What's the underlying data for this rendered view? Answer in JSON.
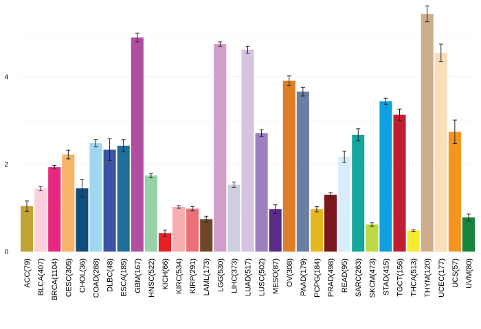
{
  "chart_data": {
    "type": "bar",
    "title": "",
    "xlabel": "",
    "ylabel": "",
    "ylim": [
      0,
      5.6
    ],
    "yticks": [
      0,
      2,
      4
    ],
    "grid": true,
    "legend": "none",
    "categories": [
      "ACC(79)",
      "BLCA(407)",
      "BRCA(1104)",
      "CESC(305)",
      "CHOL(36)",
      "COAD(288)",
      "DLBC(48)",
      "ESCA(185)",
      "GBM(167)",
      "HNSC(522)",
      "KICH(66)",
      "KIRC(534)",
      "KIRP(291)",
      "LAML(173)",
      "LGG(530)",
      "LIHC(373)",
      "LUAD(517)",
      "LUSC(502)",
      "MESO(87)",
      "OV(308)",
      "PAAD(179)",
      "PCPG(184)",
      "PRAD(498)",
      "READ(95)",
      "SARC(263)",
      "SKCM(473)",
      "STAD(415)",
      "TGCT(156)",
      "THCA(513)",
      "THYM(120)",
      "UCEC(177)",
      "UCS(57)",
      "UVM(80)"
    ],
    "values": [
      1.04,
      1.44,
      1.93,
      2.22,
      1.45,
      2.48,
      2.33,
      2.42,
      4.9,
      1.74,
      0.42,
      1.02,
      0.98,
      0.74,
      4.75,
      1.53,
      4.62,
      2.71,
      0.97,
      3.91,
      3.66,
      0.97,
      1.3,
      2.17,
      2.67,
      0.62,
      3.44,
      3.13,
      0.48,
      5.44,
      4.55,
      2.74,
      0.78
    ],
    "errors": [
      0.12,
      0.05,
      0.04,
      0.1,
      0.2,
      0.08,
      0.25,
      0.14,
      0.1,
      0.05,
      0.07,
      0.03,
      0.05,
      0.07,
      0.05,
      0.06,
      0.08,
      0.08,
      0.1,
      0.11,
      0.1,
      0.06,
      0.05,
      0.13,
      0.14,
      0.04,
      0.07,
      0.13,
      0.02,
      0.18,
      0.2,
      0.27,
      0.08
    ],
    "colors": [
      "#c2a233",
      "#f9d0dc",
      "#e8277e",
      "#f7b366",
      "#134d7c",
      "#9ed7ef",
      "#3a54a3",
      "#1f6e9b",
      "#b04f9f",
      "#96d1a8",
      "#e91f26",
      "#f7aeb0",
      "#ea6f78",
      "#6f4728",
      "#d29ec9",
      "#cdcfde",
      "#d4c4e1",
      "#9c7fbe",
      "#5b2b87",
      "#de7e27",
      "#6b7ea4",
      "#e6b820",
      "#7b171a",
      "#d8ecf9",
      "#14a79b",
      "#bcd845",
      "#109fe0",
      "#bf1f2f",
      "#f7ea2f",
      "#cead8d",
      "#f8deb9",
      "#f6951e",
      "#16843d"
    ]
  }
}
